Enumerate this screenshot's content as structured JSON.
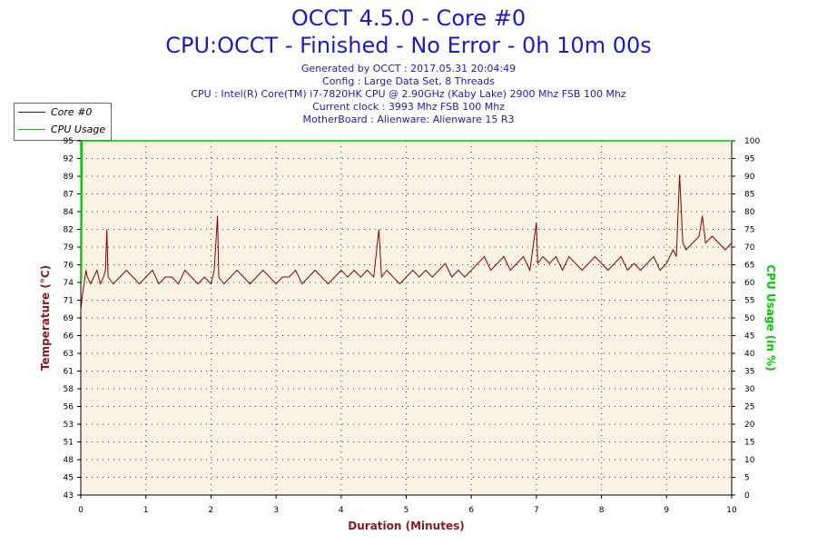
{
  "header": {
    "title": "OCCT 4.5.0 - Core #0",
    "subtitle": "CPU:OCCT - Finished - No Error - 0h 10m 00s",
    "info_lines": [
      "Generated by OCCT : 2017.05.31 20:04:49",
      "Config : Large Data Set, 8 Threads",
      "CPU : Intel(R) Core(TM) i7-7820HK CPU @ 2.90GHz (Kaby Lake) 2900 Mhz FSB 100 Mhz",
      "Current clock : 3993 Mhz FSB 100 Mhz",
      "MotherBoard : Alienware: Alienware 15 R3"
    ]
  },
  "legend": {
    "items": [
      {
        "label": "Core #0",
        "color": "#8b0000"
      },
      {
        "label": "CPU Usage",
        "color": "#00cc00"
      }
    ]
  },
  "colors": {
    "title": "#1a1acc",
    "plot_bg": "#faf3e3",
    "temp_axis": "#8b1a1a",
    "usage_axis": "#00cc00",
    "grid": "#000000"
  },
  "chart_data": {
    "type": "line",
    "xlabel": "Duration (Minutes)",
    "ylabel": "Temperature (°C)",
    "y2label": "CPU Usage (in %)",
    "xlim": [
      0,
      10
    ],
    "ylim": [
      43,
      95
    ],
    "y2lim": [
      0,
      100
    ],
    "x_ticks": [
      "0",
      "1",
      "2",
      "3",
      "4",
      "5",
      "6",
      "7",
      "8",
      "9",
      "10"
    ],
    "y_ticks": [
      "43",
      "45",
      "48",
      "51",
      "53",
      "56",
      "58",
      "61",
      "63",
      "66",
      "69",
      "71",
      "74",
      "76",
      "79",
      "82",
      "84",
      "87",
      "89",
      "92",
      "95"
    ],
    "y2_ticks": [
      "0",
      "5",
      "10",
      "15",
      "20",
      "25",
      "30",
      "35",
      "40",
      "45",
      "50",
      "55",
      "60",
      "65",
      "70",
      "75",
      "80",
      "85",
      "90",
      "95",
      "100"
    ],
    "grid": true,
    "legend_position": "top-left",
    "series": [
      {
        "name": "Core #0",
        "axis": "left",
        "x": [
          0,
          0.02,
          0.05,
          0.08,
          0.1,
          0.15,
          0.2,
          0.25,
          0.3,
          0.35,
          0.38,
          0.4,
          0.42,
          0.5,
          0.6,
          0.7,
          0.8,
          0.9,
          1.0,
          1.1,
          1.2,
          1.3,
          1.4,
          1.5,
          1.6,
          1.7,
          1.8,
          1.9,
          2.0,
          2.05,
          2.1,
          2.12,
          2.2,
          2.3,
          2.4,
          2.5,
          2.6,
          2.7,
          2.8,
          2.9,
          3.0,
          3.1,
          3.2,
          3.3,
          3.4,
          3.5,
          3.6,
          3.7,
          3.8,
          3.9,
          4.0,
          4.1,
          4.2,
          4.3,
          4.4,
          4.5,
          4.58,
          4.62,
          4.7,
          4.8,
          4.9,
          5.0,
          5.1,
          5.2,
          5.3,
          5.4,
          5.5,
          5.6,
          5.7,
          5.8,
          5.9,
          6.0,
          6.1,
          6.2,
          6.3,
          6.4,
          6.5,
          6.6,
          6.7,
          6.8,
          6.9,
          7.0,
          7.02,
          7.1,
          7.2,
          7.3,
          7.4,
          7.5,
          7.6,
          7.7,
          7.8,
          7.9,
          8.0,
          8.1,
          8.2,
          8.3,
          8.4,
          8.5,
          8.6,
          8.7,
          8.8,
          8.9,
          9.0,
          9.1,
          9.15,
          9.2,
          9.25,
          9.3,
          9.4,
          9.5,
          9.55,
          9.6,
          9.7,
          9.8,
          9.9,
          10.0
        ],
        "y": [
          70,
          72,
          74,
          76,
          75,
          74,
          75,
          76,
          74,
          75,
          76,
          82,
          75,
          74,
          75,
          76,
          75,
          74,
          75,
          76,
          74,
          75,
          75,
          74,
          76,
          75,
          74,
          75,
          74,
          76,
          84,
          75,
          74,
          75,
          76,
          75,
          74,
          75,
          76,
          75,
          74,
          75,
          75,
          76,
          74,
          75,
          76,
          75,
          74,
          75,
          76,
          75,
          76,
          75,
          76,
          75,
          82,
          75,
          76,
          75,
          74,
          75,
          76,
          75,
          76,
          75,
          76,
          77,
          75,
          76,
          75,
          76,
          77,
          78,
          76,
          77,
          78,
          76,
          77,
          78,
          76,
          83,
          77,
          78,
          77,
          78,
          76,
          78,
          77,
          76,
          77,
          78,
          77,
          76,
          77,
          78,
          76,
          77,
          76,
          77,
          78,
          76,
          77,
          79,
          78,
          90,
          80,
          79,
          80,
          81,
          84,
          80,
          81,
          80,
          79,
          80
        ]
      },
      {
        "name": "CPU Usage",
        "axis": "right",
        "x": [
          0,
          0.01,
          0.02,
          0.03,
          0.05,
          10
        ],
        "y": [
          100,
          60,
          100,
          100,
          100,
          100
        ]
      }
    ]
  }
}
